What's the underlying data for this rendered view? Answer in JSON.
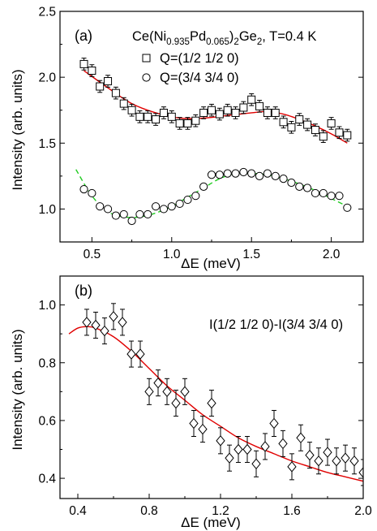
{
  "chart_data": [
    {
      "type": "scatter",
      "panel_label": "(a)",
      "title": "Ce(Ni0.935Pd0.065)2Ge2, T=0.4 K",
      "title_parts": {
        "prefix": "Ce(Ni",
        "sub1": "0.935",
        "mid": "Pd",
        "sub2": "0.065",
        "close": ")",
        "sub3": "2",
        "suffix": "Ge",
        "sub4": "2",
        "tail": ", T=0.4 K"
      },
      "xlabel": "ΔE (meV)",
      "ylabel": "Intensity (arb. units)",
      "xlim": [
        0.3,
        2.2
      ],
      "ylim": [
        0.75,
        2.5
      ],
      "xticks": [
        0.5,
        1.0,
        1.5,
        2.0
      ],
      "xtick_labels": [
        "0.5",
        "1.0",
        "1.5",
        "2.0"
      ],
      "yticks": [
        1.0,
        1.5,
        2.0,
        2.5
      ],
      "ytick_labels": [
        "1.0",
        "1.5",
        "2.0",
        "2.5"
      ],
      "legend_position": "top-right",
      "series": [
        {
          "name": "Q=(1/2 1/2 0)",
          "marker": "square",
          "x": [
            0.45,
            0.5,
            0.55,
            0.6,
            0.65,
            0.7,
            0.75,
            0.8,
            0.85,
            0.9,
            0.95,
            1.0,
            1.05,
            1.1,
            1.15,
            1.2,
            1.25,
            1.3,
            1.35,
            1.4,
            1.45,
            1.5,
            1.55,
            1.6,
            1.65,
            1.7,
            1.75,
            1.8,
            1.85,
            1.9,
            1.95,
            2.0,
            2.05,
            2.1
          ],
          "y": [
            2.1,
            2.05,
            1.93,
            1.97,
            1.88,
            1.8,
            1.75,
            1.7,
            1.7,
            1.68,
            1.73,
            1.7,
            1.65,
            1.65,
            1.67,
            1.73,
            1.75,
            1.72,
            1.75,
            1.73,
            1.77,
            1.83,
            1.78,
            1.73,
            1.73,
            1.66,
            1.62,
            1.68,
            1.64,
            1.6,
            1.55,
            1.65,
            1.58,
            1.56
          ],
          "yerr": 0.045
        },
        {
          "name": "Q=(3/4 3/4 0)",
          "marker": "circle",
          "x": [
            0.45,
            0.5,
            0.55,
            0.6,
            0.65,
            0.7,
            0.75,
            0.8,
            0.85,
            0.9,
            0.95,
            1.0,
            1.05,
            1.1,
            1.15,
            1.2,
            1.25,
            1.3,
            1.35,
            1.4,
            1.45,
            1.5,
            1.55,
            1.6,
            1.65,
            1.7,
            1.75,
            1.8,
            1.85,
            1.9,
            1.95,
            2.0,
            2.05,
            2.1
          ],
          "y": [
            1.15,
            1.12,
            1.02,
            1.0,
            0.95,
            0.96,
            0.91,
            0.96,
            0.96,
            1.02,
            1.0,
            1.02,
            1.04,
            1.07,
            1.1,
            1.17,
            1.26,
            1.26,
            1.27,
            1.27,
            1.28,
            1.27,
            1.25,
            1.27,
            1.25,
            1.23,
            1.2,
            1.17,
            1.16,
            1.12,
            1.12,
            1.1,
            1.1,
            1.01
          ],
          "yerr": 0.02
        }
      ],
      "fits": [
        {
          "style": "solid",
          "color": "#e00000",
          "x": [
            0.45,
            0.6,
            0.75,
            0.9,
            1.05,
            1.2,
            1.35,
            1.5,
            1.6,
            1.7,
            1.8,
            1.9,
            2.0,
            2.1
          ],
          "y": [
            2.05,
            1.92,
            1.8,
            1.73,
            1.69,
            1.69,
            1.71,
            1.73,
            1.74,
            1.72,
            1.68,
            1.63,
            1.57,
            1.5
          ]
        },
        {
          "style": "dashed",
          "color": "#22cc22",
          "x": [
            0.4,
            0.5,
            0.6,
            0.7,
            0.8,
            0.9,
            1.0,
            1.1,
            1.2,
            1.3,
            1.4,
            1.5,
            1.6,
            1.7,
            1.8,
            1.9,
            2.0,
            2.1
          ],
          "y": [
            1.3,
            1.1,
            0.98,
            0.94,
            0.94,
            0.97,
            1.02,
            1.09,
            1.16,
            1.23,
            1.27,
            1.27,
            1.26,
            1.23,
            1.19,
            1.14,
            1.08,
            1.02
          ]
        }
      ]
    },
    {
      "type": "scatter",
      "panel_label": "(b)",
      "annotation": "I(1/2 1/2 0)-I(3/4 3/4 0)",
      "xlabel": "ΔE (meV)",
      "ylabel": "Intensity (arb. units)",
      "xlim": [
        0.3,
        2.0
      ],
      "ylim": [
        0.33,
        1.1
      ],
      "xticks": [
        0.4,
        0.8,
        1.2,
        1.6,
        2.0
      ],
      "xtick_labels": [
        "0.4",
        "0.8",
        "1.2",
        "1.6",
        "2.0"
      ],
      "yticks": [
        0.4,
        0.6,
        0.8,
        1.0
      ],
      "ytick_labels": [
        "0.4",
        "0.6",
        "0.8",
        "1.0"
      ],
      "series": [
        {
          "name": "",
          "marker": "diamond",
          "x": [
            0.45,
            0.5,
            0.55,
            0.6,
            0.65,
            0.7,
            0.75,
            0.8,
            0.85,
            0.9,
            0.95,
            1.0,
            1.05,
            1.1,
            1.15,
            1.2,
            1.25,
            1.3,
            1.35,
            1.4,
            1.45,
            1.5,
            1.55,
            1.6,
            1.65,
            1.7,
            1.75,
            1.8,
            1.85,
            1.9,
            1.95,
            2.0
          ],
          "y": [
            0.94,
            0.93,
            0.91,
            0.96,
            0.94,
            0.83,
            0.83,
            0.7,
            0.73,
            0.7,
            0.66,
            0.7,
            0.59,
            0.57,
            0.66,
            0.53,
            0.47,
            0.5,
            0.5,
            0.45,
            0.51,
            0.59,
            0.52,
            0.44,
            0.54,
            0.48,
            0.46,
            0.49,
            0.46,
            0.47,
            0.46,
            0.42
          ],
          "yerr": 0.045
        }
      ],
      "fits": [
        {
          "style": "solid",
          "color": "#e00000",
          "x": [
            0.35,
            0.4,
            0.45,
            0.5,
            0.6,
            0.7,
            0.8,
            0.9,
            1.0,
            1.1,
            1.2,
            1.3,
            1.4,
            1.5,
            1.6,
            1.7,
            1.8,
            1.9,
            2.0
          ],
          "y": [
            0.9,
            0.92,
            0.925,
            0.92,
            0.89,
            0.84,
            0.78,
            0.72,
            0.67,
            0.62,
            0.58,
            0.54,
            0.51,
            0.485,
            0.46,
            0.44,
            0.42,
            0.405,
            0.39
          ]
        }
      ]
    }
  ]
}
